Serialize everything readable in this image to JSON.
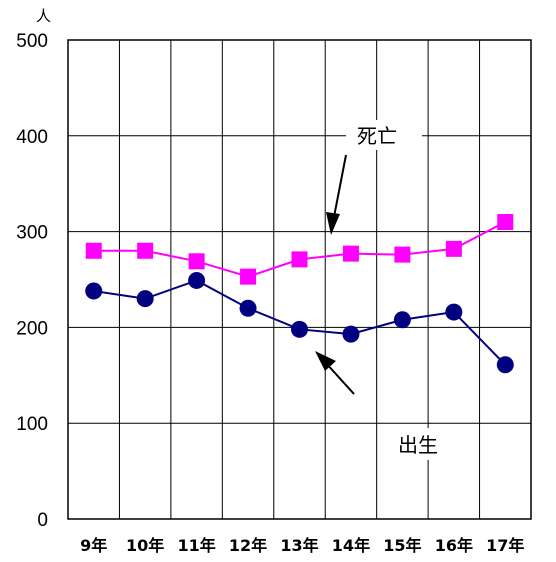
{
  "chart_data": {
    "type": "line",
    "title": "",
    "ylabel": "人",
    "xlabel": "",
    "categories": [
      "9年",
      "10年",
      "11年",
      "12年",
      "13年",
      "14年",
      "15年",
      "16年",
      "17年"
    ],
    "ylim": [
      0,
      500
    ],
    "yticks": [
      0,
      100,
      200,
      300,
      400,
      500
    ],
    "grid": true,
    "series": [
      {
        "name": "死亡",
        "color": "#ff00ff",
        "marker": "square",
        "values": [
          280,
          280,
          269,
          253,
          271,
          277,
          276,
          282,
          310
        ]
      },
      {
        "name": "出生",
        "color": "#000080",
        "marker": "circle",
        "values": [
          238,
          230,
          249,
          220,
          198,
          193,
          208,
          216,
          161
        ]
      }
    ],
    "annotations": [
      "死亡",
      "出生"
    ]
  }
}
